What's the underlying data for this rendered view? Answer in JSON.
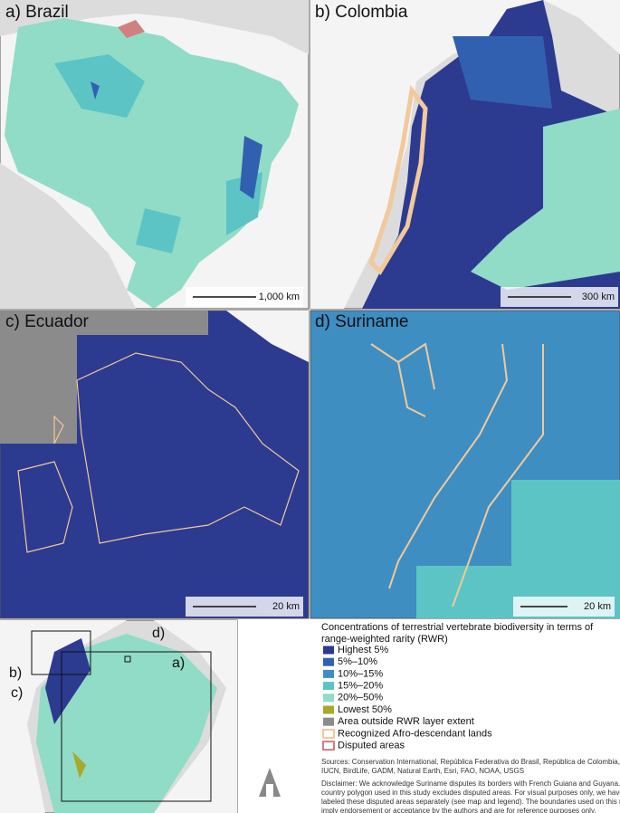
{
  "panels": [
    {
      "label": "a) Brazil",
      "scale": "1,000 km"
    },
    {
      "label": "b) Colombia",
      "scale": "300 km"
    },
    {
      "label": "c) Ecuador",
      "scale": "20 km"
    },
    {
      "label": "d) Suriname",
      "scale": "20 km"
    }
  ],
  "inset_labels": [
    "a)",
    "b)",
    "c)",
    "d)"
  ],
  "legend": {
    "title": [
      "Concentrations of terrestrial vertebrate biodiversity in terms of",
      "range-weighted rarity (RWR)"
    ],
    "items": [
      {
        "label": "Highest 5%",
        "color": "#2c3a90"
      },
      {
        "label": "5%–10%",
        "color": "#3260b0"
      },
      {
        "label": "10%–15%",
        "color": "#3f8ec2"
      },
      {
        "label": "15%–20%",
        "color": "#5cc4c5"
      },
      {
        "label": "20%–50%",
        "color": "#91dcc6"
      },
      {
        "label": "Lowest 50%",
        "color": "#a9a82c"
      },
      {
        "label": "Area outside RWR layer extent",
        "color": "#8b8b8b"
      },
      {
        "label": "Recognized Afro-descendant lands",
        "color": "#f1c99b"
      },
      {
        "label": "Disputed areas",
        "color": "#d08080"
      }
    ]
  },
  "sources": [
    "Sources: Conservation International, República Federativa do Brasil, República de Colombia, EcoCiencia,",
    "IUCN, BirdLife, GADM, Natural Earth, Esri, FAO, NOAA, USGS"
  ],
  "disclaimer": [
    "Disclaimer: We acknowledge Suriname disputes its borders with French Guiana and Guyana. The Suriname",
    "country polygon used in this study excludes disputed areas. For visual purposes only, we have mapped and",
    "labeled these disputed areas separately (see map and legend). The boundaries used on this map do not",
    "imply endorsement or acceptance by the authors and are for reference purposes only."
  ]
}
